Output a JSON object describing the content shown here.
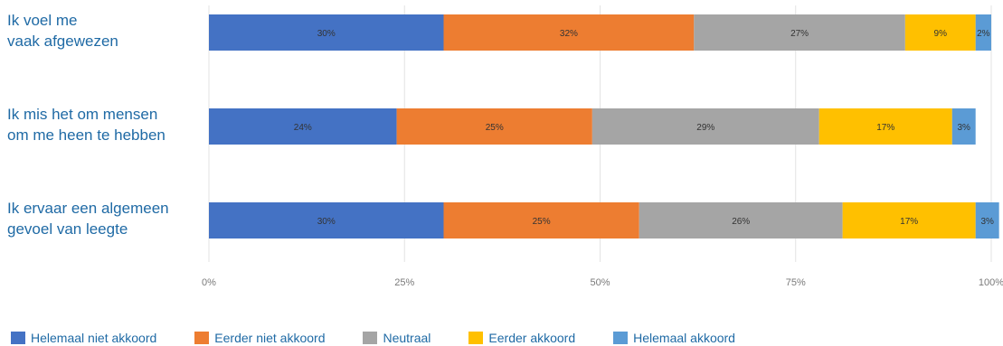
{
  "chart_data": {
    "type": "bar",
    "orientation": "horizontal",
    "stacked": true,
    "categories": [
      [
        "Ik voel me",
        "vaak afgewezen"
      ],
      [
        "Ik mis het om mensen",
        "om me heen te hebben"
      ],
      [
        "Ik ervaar een algemeen",
        "gevoel van leegte"
      ]
    ],
    "series": [
      {
        "name": "Helemaal niet akkoord",
        "color": "#4472c4",
        "values": [
          30,
          24,
          30
        ]
      },
      {
        "name": "Eerder niet akkoord",
        "color": "#ed7d31",
        "values": [
          32,
          25,
          25
        ]
      },
      {
        "name": "Neutraal",
        "color": "#a5a5a5",
        "values": [
          27,
          29,
          26
        ]
      },
      {
        "name": "Eerder akkoord",
        "color": "#ffc000",
        "values": [
          9,
          17,
          17
        ]
      },
      {
        "name": "Helemaal akkoord",
        "color": "#5b9bd5",
        "values": [
          2,
          3,
          3
        ]
      }
    ],
    "data_labels": [
      [
        "30%",
        "32%",
        "27%",
        "9%",
        "2%"
      ],
      [
        "24%",
        "25%",
        "29%",
        "17%",
        "3%"
      ],
      [
        "30%",
        "25%",
        "26%",
        "17%",
        "3%"
      ]
    ],
    "xticks": [
      "0%",
      "25%",
      "50%",
      "75%",
      "100%"
    ],
    "xlim": [
      0,
      100
    ],
    "grid": true,
    "legend_position": "bottom"
  }
}
